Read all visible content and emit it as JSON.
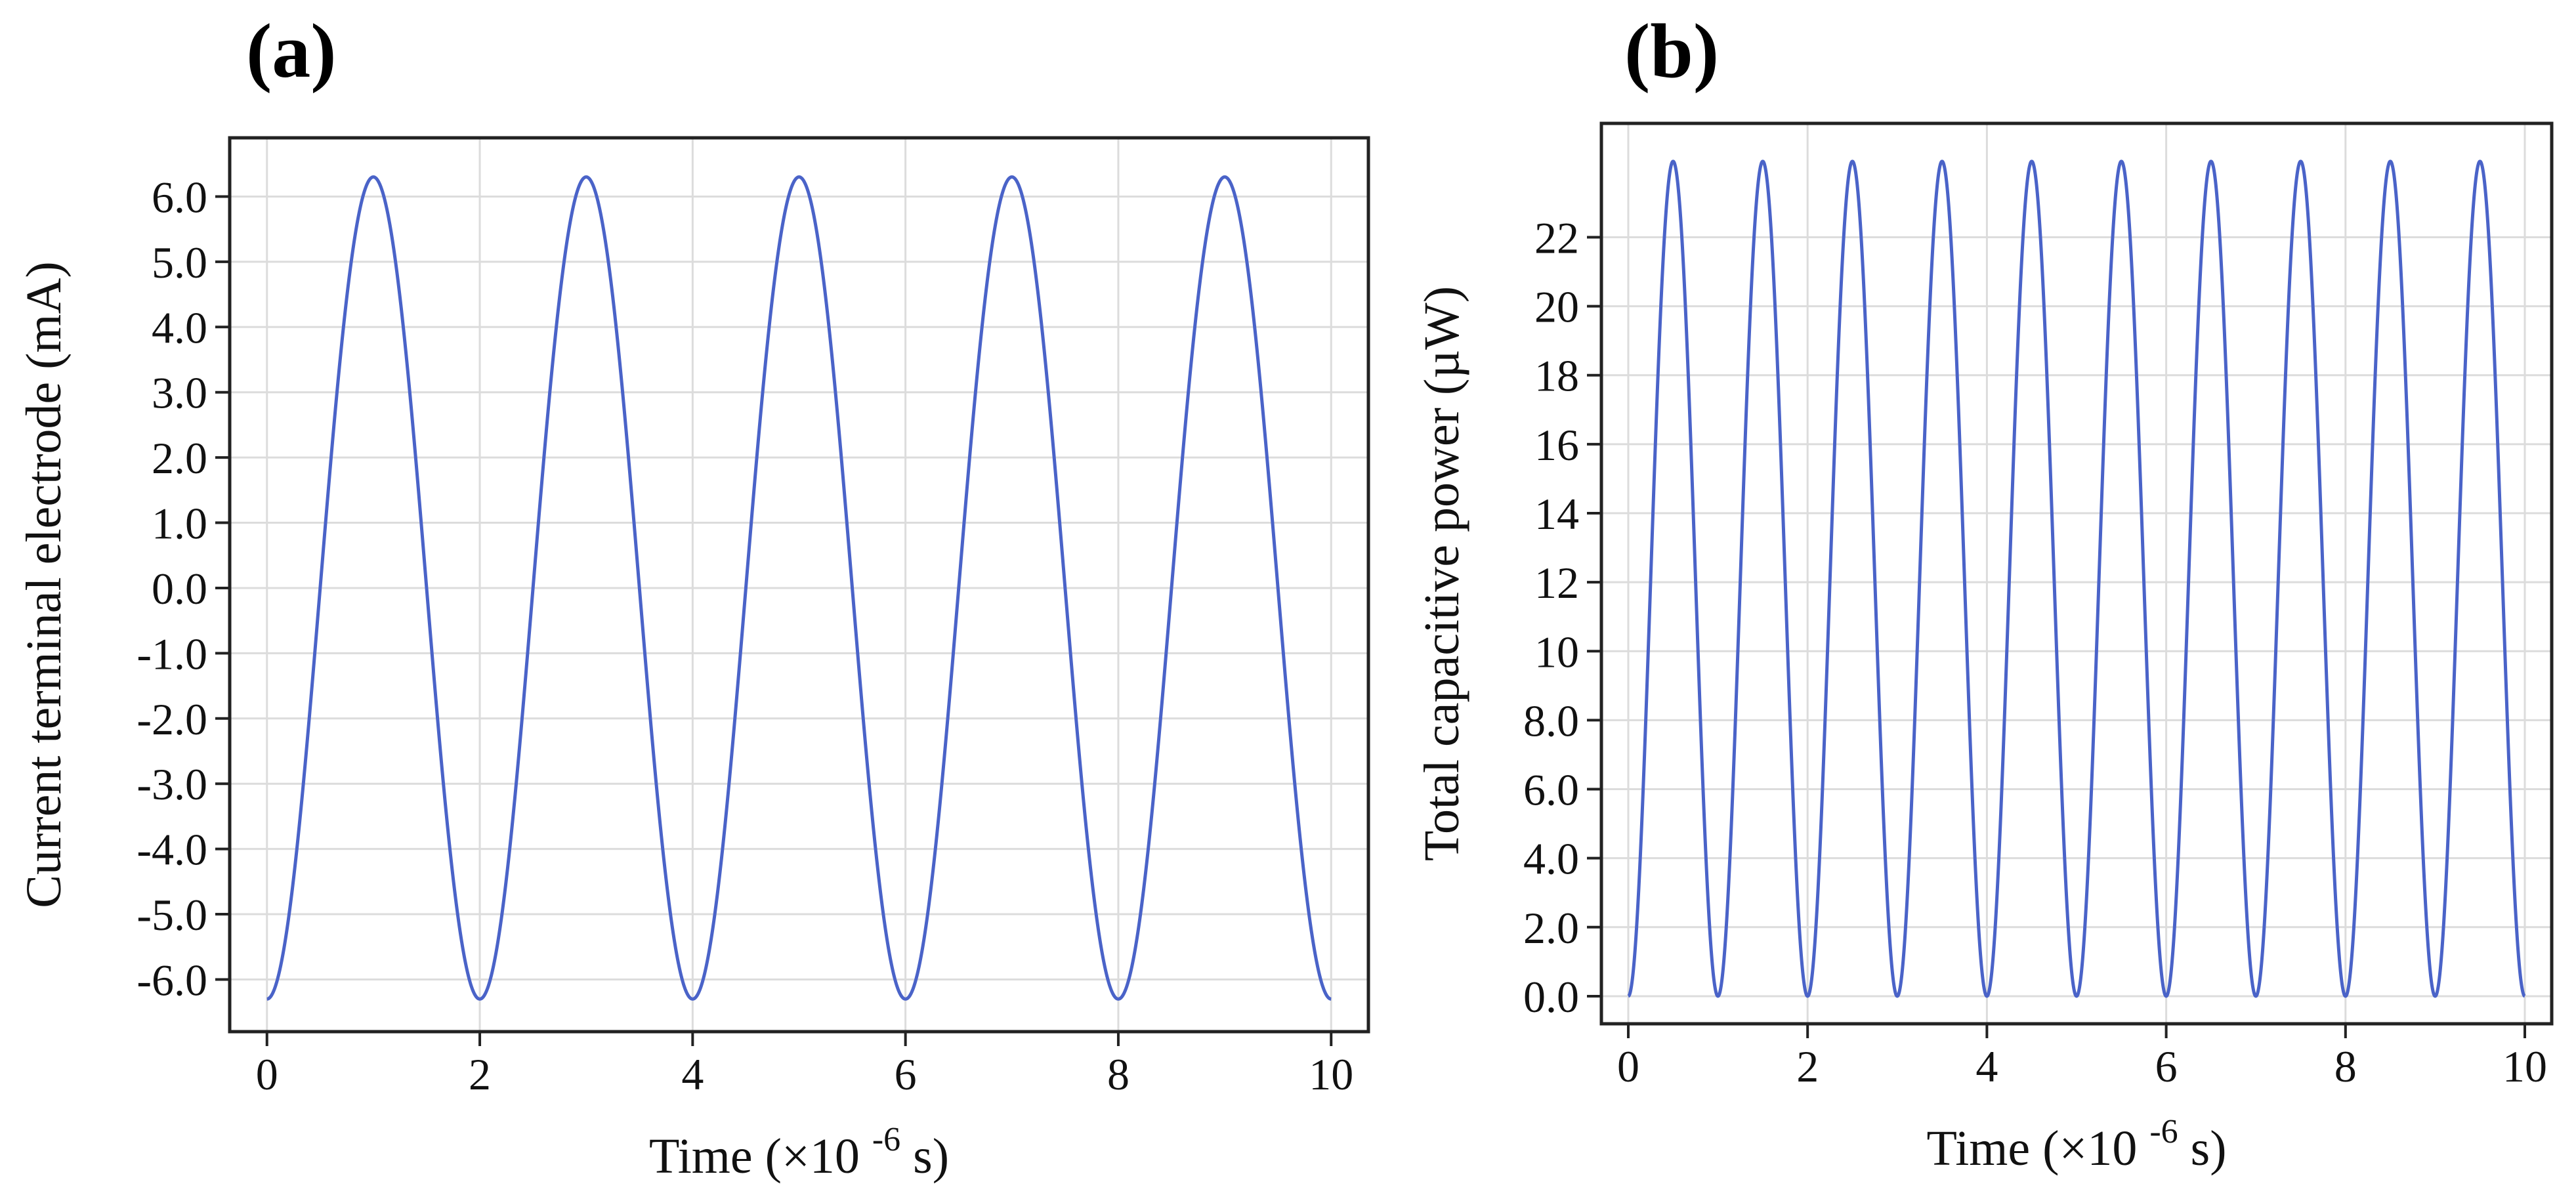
{
  "chart_data": [
    {
      "id": "a",
      "type": "line",
      "panel_label": "(a)",
      "xlabel": "Time (×10 -6 s)",
      "xlabel_main": "Time (×10",
      "xlabel_exp": "-6",
      "xlabel_tail": "s)",
      "ylabel": "Current terminal electrode (mA)",
      "xlim": [
        -0.35,
        10.35
      ],
      "ylim": [
        -6.8,
        6.9
      ],
      "xticks": [
        0,
        2,
        4,
        6,
        8,
        10
      ],
      "xtick_labels": [
        "0",
        "2",
        "4",
        "6",
        "8",
        "10"
      ],
      "yticks": [
        6,
        5,
        4,
        3,
        2,
        1,
        0,
        -1,
        -2,
        -3,
        -4,
        -5,
        -6
      ],
      "ytick_labels": [
        "6.0",
        "5.0",
        "4.0",
        "3.0",
        "2.0",
        "1.0",
        "0.0",
        "-1.0",
        "-2.0",
        "-3.0",
        "-4.0",
        "-5.0",
        "-6.0"
      ],
      "grid": true,
      "series": [
        {
          "name": "current",
          "color": "#4a63c8",
          "function": "-A*cos(pi*t)",
          "amplitude": 6.3,
          "period": 2,
          "x": [
            0,
            1,
            2,
            3,
            4,
            5,
            6,
            7,
            8,
            9,
            10
          ],
          "y": [
            -6.3,
            6.3,
            -6.3,
            6.3,
            -6.3,
            6.3,
            -6.3,
            6.3,
            -6.3,
            6.3,
            -6.3
          ]
        }
      ]
    },
    {
      "id": "b",
      "type": "line",
      "panel_label": "(b)",
      "xlabel": "Time (×10 -6 s)",
      "xlabel_main": "Time (×10",
      "xlabel_exp": "-6",
      "xlabel_tail": "s)",
      "ylabel": "Total capacitive power (µW)",
      "xlim": [
        -0.3,
        10.3
      ],
      "ylim": [
        -0.8,
        25.3
      ],
      "xticks": [
        0,
        2,
        4,
        6,
        8,
        10
      ],
      "xtick_labels": [
        "0",
        "2",
        "4",
        "6",
        "8",
        "10"
      ],
      "yticks": [
        22,
        20,
        18,
        16,
        14,
        12,
        10,
        8,
        6,
        4,
        2,
        0
      ],
      "ytick_labels": [
        "22",
        "20",
        "18",
        "16",
        "14",
        "12",
        "10",
        "8.0",
        "6.0",
        "4.0",
        "2.0",
        "0.0"
      ],
      "grid": true,
      "series": [
        {
          "name": "power",
          "color": "#4a63c8",
          "function": "P*sin^2(pi*t)",
          "peak": 24.2,
          "period": 1,
          "x": [
            0,
            0.5,
            1,
            1.5,
            2,
            2.5,
            3,
            3.5,
            4,
            4.5,
            5,
            5.5,
            6,
            6.5,
            7,
            7.5,
            8,
            8.5,
            9,
            9.5,
            10
          ],
          "y": [
            0,
            24.2,
            0,
            24.2,
            0,
            24.2,
            0,
            24.2,
            0,
            24.2,
            0,
            24.2,
            0,
            24.2,
            0,
            24.2,
            0,
            24.2,
            0,
            24.2,
            0
          ]
        }
      ]
    }
  ]
}
